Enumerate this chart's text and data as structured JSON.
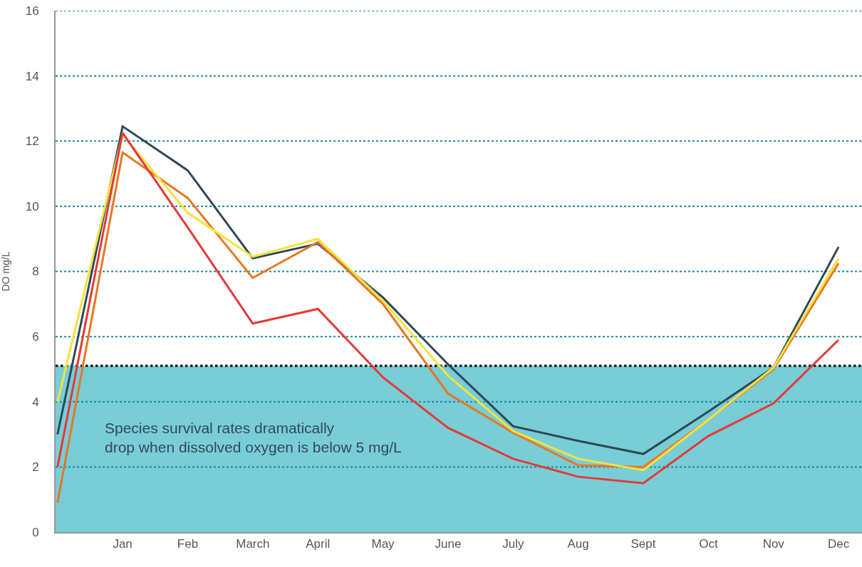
{
  "chart_data": {
    "type": "line",
    "ylabel": "DO mg/L",
    "categories": [
      null,
      "Jan",
      "Feb",
      "March",
      "April",
      "May",
      "June",
      "July",
      "Aug",
      "Sept",
      "Oct",
      "Nov",
      "Dec"
    ],
    "series": [
      {
        "color": "#2f4858",
        "values": [
          3.0,
          12.45,
          11.1,
          8.4,
          8.85,
          7.2,
          5.15,
          3.25,
          2.8,
          2.4,
          3.7,
          5.05,
          8.75
        ]
      },
      {
        "color": "#e87722",
        "values": [
          0.9,
          11.65,
          10.25,
          7.8,
          8.9,
          7.0,
          4.25,
          3.05,
          2.05,
          2.0,
          3.45,
          5.0,
          8.25
        ]
      },
      {
        "color": "#f2e33d",
        "values": [
          4.0,
          12.2,
          9.8,
          8.45,
          9.0,
          7.1,
          4.8,
          3.1,
          2.25,
          1.9,
          3.45,
          5.05,
          8.4
        ]
      },
      {
        "color": "#e53935",
        "values": [
          2.0,
          12.25,
          9.35,
          6.4,
          6.85,
          4.75,
          3.2,
          2.25,
          1.7,
          1.5,
          2.95,
          3.95,
          5.9
        ]
      }
    ],
    "ylim": [
      0,
      16
    ],
    "yticks": [
      0,
      2,
      4,
      6,
      8,
      10,
      12,
      14,
      16
    ],
    "grid": "y",
    "marker": "none",
    "line_style": "solid",
    "bands": [
      {
        "axis": "y",
        "from": 0,
        "to": 5.1,
        "color": "#78cdd7"
      }
    ],
    "ref_lines": [
      {
        "axis": "y",
        "value": 5.1,
        "color": "#222222",
        "line_style": "dotted"
      }
    ],
    "annotations": [
      "Species survival rates dramatically\ndrop when dissolved oxygen is below 5 mg/L"
    ]
  }
}
